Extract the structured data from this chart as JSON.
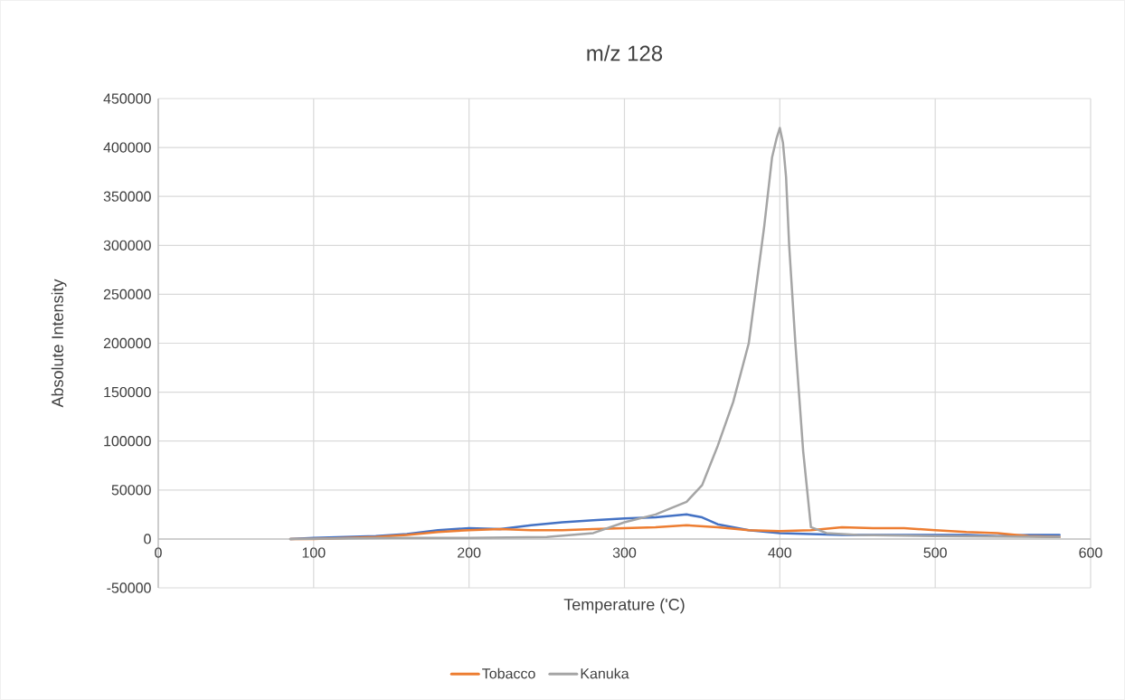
{
  "chart_data": {
    "type": "line",
    "title": "m/z 128",
    "xlabel": "Temperature ('C)",
    "ylabel": "Absolute Intensity",
    "xlim": [
      0,
      600
    ],
    "xticks": [
      0,
      100,
      200,
      300,
      400,
      500,
      600
    ],
    "ylim": [
      -50000,
      450000
    ],
    "yticks": [
      -50000,
      0,
      50000,
      100000,
      150000,
      200000,
      250000,
      300000,
      350000,
      400000,
      450000
    ],
    "grid": true,
    "legend": "bottom",
    "line_style": "solid",
    "marker": "none",
    "series": [
      {
        "color": "#4472c4",
        "x": [
          85,
          100,
          120,
          140,
          160,
          180,
          200,
          220,
          240,
          260,
          280,
          300,
          320,
          340,
          350,
          360,
          380,
          400,
          420,
          440,
          460,
          480,
          500,
          520,
          540,
          560,
          580
        ],
        "values": [
          0,
          1000,
          2000,
          3000,
          5000,
          9000,
          11000,
          10000,
          14000,
          17000,
          19000,
          21000,
          22000,
          25000,
          22000,
          15000,
          9000,
          6000,
          5000,
          4000,
          4000,
          4000,
          4000,
          4000,
          3000,
          4000,
          4000
        ]
      },
      {
        "name": "Tobacco",
        "color": "#ed7d31",
        "x": [
          85,
          100,
          120,
          140,
          160,
          180,
          200,
          220,
          240,
          260,
          280,
          300,
          320,
          340,
          360,
          380,
          400,
          420,
          440,
          460,
          480,
          500,
          520,
          540,
          560,
          580
        ],
        "values": [
          0,
          0,
          1000,
          2000,
          4000,
          7000,
          9000,
          10000,
          9000,
          9000,
          10000,
          11000,
          12000,
          14000,
          12000,
          9000,
          8000,
          9000,
          12000,
          11000,
          11000,
          9000,
          7000,
          6000,
          3000,
          2000
        ]
      },
      {
        "name": "Kanuka",
        "color": "#a5a5a5",
        "x": [
          85,
          150,
          200,
          250,
          280,
          300,
          320,
          340,
          350,
          360,
          370,
          380,
          390,
          395,
          398,
          400,
          402,
          404,
          406,
          410,
          415,
          420,
          430,
          450,
          500,
          580
        ],
        "values": [
          0,
          1000,
          1000,
          2000,
          6000,
          17000,
          25000,
          38000,
          55000,
          95000,
          140000,
          200000,
          320000,
          390000,
          410000,
          420000,
          405000,
          370000,
          300000,
          200000,
          90000,
          12000,
          6000,
          4000,
          3000,
          2000
        ]
      }
    ]
  }
}
